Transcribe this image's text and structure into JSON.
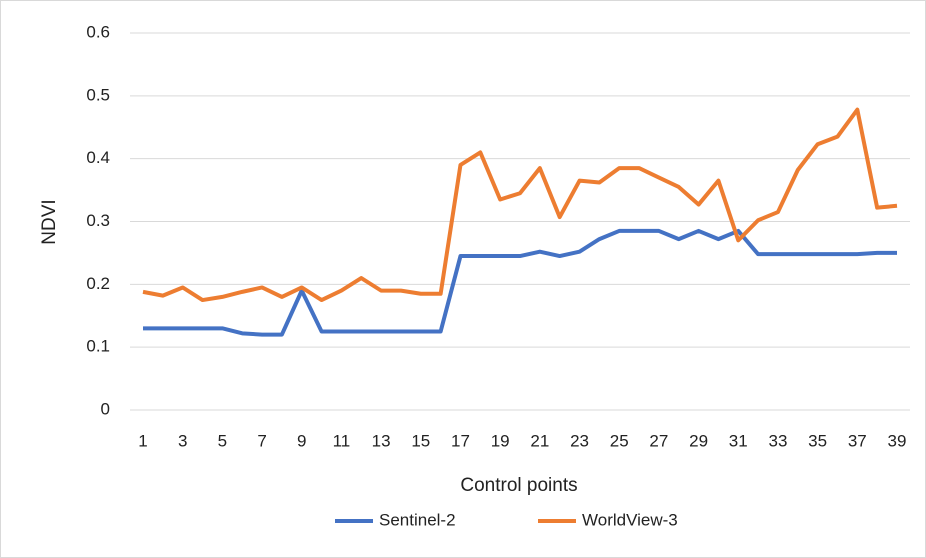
{
  "chart_data": {
    "type": "line",
    "x_label": "Control points",
    "y_label": "NDVI",
    "categories": [
      "1",
      null,
      "3",
      null,
      "5",
      null,
      "7",
      null,
      "9",
      null,
      "11",
      null,
      "13",
      null,
      "15",
      null,
      "17",
      null,
      "19",
      null,
      "21",
      null,
      "23",
      null,
      "25",
      null,
      "27",
      null,
      "29",
      null,
      "31",
      null,
      "33",
      null,
      "35",
      null,
      "37",
      null,
      "39"
    ],
    "series": [
      {
        "name": "Sentinel-2",
        "color": "#4472c4",
        "values": [
          0.13,
          0.13,
          0.13,
          0.13,
          0.13,
          0.122,
          0.12,
          0.12,
          0.19,
          0.125,
          0.125,
          0.125,
          0.125,
          0.125,
          0.125,
          0.125,
          0.245,
          0.245,
          0.245,
          0.245,
          0.252,
          0.245,
          0.252,
          0.272,
          0.285,
          0.285,
          0.285,
          0.272,
          0.285,
          0.272,
          0.285,
          0.248,
          0.248,
          0.248,
          0.248,
          0.248,
          0.248,
          0.25,
          0.25
        ]
      },
      {
        "name": "WorldView-3",
        "color": "#ed7d31",
        "values": [
          0.188,
          0.182,
          0.195,
          0.175,
          0.18,
          0.188,
          0.195,
          0.18,
          0.195,
          0.175,
          0.19,
          0.21,
          0.19,
          0.19,
          0.185,
          0.185,
          0.39,
          0.41,
          0.335,
          0.345,
          0.385,
          0.307,
          0.365,
          0.362,
          0.385,
          0.385,
          0.37,
          0.355,
          0.327,
          0.365,
          0.27,
          0.302,
          0.315,
          0.382,
          0.423,
          0.435,
          0.478,
          0.322,
          0.325
        ]
      }
    ],
    "ylim": [
      0,
      0.6
    ],
    "yticks": [
      0,
      0.1,
      0.2,
      0.3,
      0.4,
      0.5,
      0.6
    ],
    "grid": true,
    "legend": "bottom"
  }
}
